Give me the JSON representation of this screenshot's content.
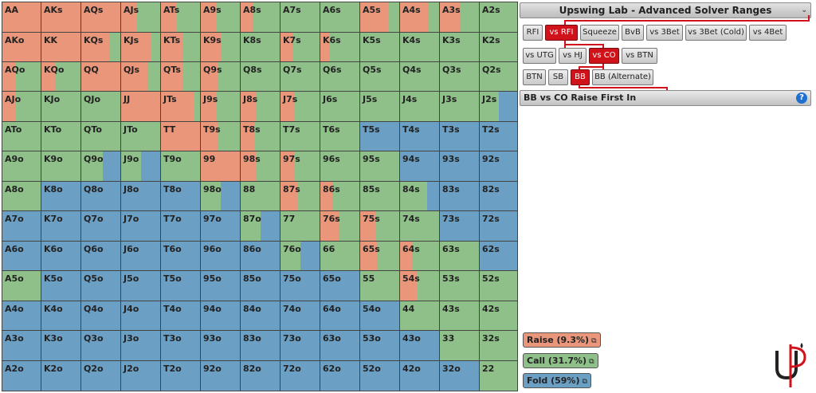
{
  "app": {
    "title": "Upswing Lab - Advanced Solver Ranges"
  },
  "colors": {
    "raise": "#e9967a",
    "call": "#8fc08a",
    "fold": "#6c9fc4",
    "active": "#d0131a"
  },
  "grid": {
    "cells": [
      [
        {
          "h": "AA",
          "r": 1,
          "c": 0
        },
        {
          "h": "AKs",
          "r": 1,
          "c": 0
        },
        {
          "h": "AQs",
          "r": 1,
          "c": 0
        },
        {
          "h": "AJs",
          "r": 0.4,
          "c": 0.6
        },
        {
          "h": "ATs",
          "r": 0.4,
          "c": 0.6
        },
        {
          "h": "A9s",
          "r": 0.4,
          "c": 0.6
        },
        {
          "h": "A8s",
          "r": 0.3,
          "c": 0.7
        },
        {
          "h": "A7s",
          "r": 0,
          "c": 1
        },
        {
          "h": "A6s",
          "r": 0,
          "c": 1
        },
        {
          "h": "A5s",
          "r": 0.72,
          "c": 0.28
        },
        {
          "h": "A4s",
          "r": 0.72,
          "c": 0.28
        },
        {
          "h": "A3s",
          "r": 0.5,
          "c": 0.5
        },
        {
          "h": "A2s",
          "r": 0,
          "c": 1
        }
      ],
      [
        {
          "h": "AKo",
          "r": 1,
          "c": 0
        },
        {
          "h": "KK",
          "r": 1,
          "c": 0
        },
        {
          "h": "KQs",
          "r": 0.72,
          "c": 0.28
        },
        {
          "h": "KJs",
          "r": 0.78,
          "c": 0.22
        },
        {
          "h": "KTs",
          "r": 0.55,
          "c": 0.45
        },
        {
          "h": "K9s",
          "r": 0.5,
          "c": 0.5
        },
        {
          "h": "K8s",
          "r": 0,
          "c": 1
        },
        {
          "h": "K7s",
          "r": 0.3,
          "c": 0.7
        },
        {
          "h": "K6s",
          "r": 0.22,
          "c": 0.78
        },
        {
          "h": "K5s",
          "r": 0,
          "c": 1
        },
        {
          "h": "K4s",
          "r": 0,
          "c": 1
        },
        {
          "h": "K3s",
          "r": 0,
          "c": 1
        },
        {
          "h": "K2s",
          "r": 0,
          "c": 1
        }
      ],
      [
        {
          "h": "AQo",
          "r": 0.35,
          "c": 0.65
        },
        {
          "h": "KQo",
          "r": 0.35,
          "c": 0.65
        },
        {
          "h": "QQ",
          "r": 1,
          "c": 0
        },
        {
          "h": "QJs",
          "r": 0.7,
          "c": 0.3
        },
        {
          "h": "QTs",
          "r": 0.55,
          "c": 0.45
        },
        {
          "h": "Q9s",
          "r": 0.45,
          "c": 0.55
        },
        {
          "h": "Q8s",
          "r": 0,
          "c": 1
        },
        {
          "h": "Q7s",
          "r": 0,
          "c": 1
        },
        {
          "h": "Q6s",
          "r": 0,
          "c": 1
        },
        {
          "h": "Q5s",
          "r": 0,
          "c": 1
        },
        {
          "h": "Q4s",
          "r": 0,
          "c": 1
        },
        {
          "h": "Q3s",
          "r": 0,
          "c": 1
        },
        {
          "h": "Q2s",
          "r": 0,
          "c": 1
        }
      ],
      [
        {
          "h": "AJo",
          "r": 0.35,
          "c": 0.65
        },
        {
          "h": "KJo",
          "r": 0,
          "c": 1
        },
        {
          "h": "QJo",
          "r": 0,
          "c": 1
        },
        {
          "h": "JJ",
          "r": 1,
          "c": 0
        },
        {
          "h": "JTs",
          "r": 0.85,
          "c": 0.15
        },
        {
          "h": "J9s",
          "r": 0.4,
          "c": 0.6
        },
        {
          "h": "J8s",
          "r": 0.4,
          "c": 0.6
        },
        {
          "h": "J7s",
          "r": 0.35,
          "c": 0.65
        },
        {
          "h": "J6s",
          "r": 0,
          "c": 1
        },
        {
          "h": "J5s",
          "r": 0,
          "c": 1
        },
        {
          "h": "J4s",
          "r": 0,
          "c": 1
        },
        {
          "h": "J3s",
          "r": 0,
          "c": 1
        },
        {
          "h": "J2s",
          "r": 0,
          "c": 0.5
        }
      ],
      [
        {
          "h": "ATo",
          "r": 0,
          "c": 1
        },
        {
          "h": "KTo",
          "r": 0,
          "c": 1
        },
        {
          "h": "QTo",
          "r": 0,
          "c": 1
        },
        {
          "h": "JTo",
          "r": 0,
          "c": 1
        },
        {
          "h": "TT",
          "r": 1,
          "c": 0
        },
        {
          "h": "T9s",
          "r": 0.42,
          "c": 0.58
        },
        {
          "h": "T8s",
          "r": 0.35,
          "c": 0.65
        },
        {
          "h": "T7s",
          "r": 0,
          "c": 1
        },
        {
          "h": "T6s",
          "r": 0,
          "c": 1
        },
        {
          "h": "T5s",
          "r": 0,
          "c": 0
        },
        {
          "h": "T4s",
          "r": 0,
          "c": 0
        },
        {
          "h": "T3s",
          "r": 0,
          "c": 0
        },
        {
          "h": "T2s",
          "r": 0,
          "c": 0
        }
      ],
      [
        {
          "h": "A9o",
          "r": 0,
          "c": 1
        },
        {
          "h": "K9o",
          "r": 0,
          "c": 1
        },
        {
          "h": "Q9o",
          "r": 0,
          "c": 0.55
        },
        {
          "h": "J9o",
          "r": 0,
          "c": 0.5
        },
        {
          "h": "T9o",
          "r": 0,
          "c": 1
        },
        {
          "h": "99",
          "r": 1,
          "c": 0
        },
        {
          "h": "98s",
          "r": 0.4,
          "c": 0.6
        },
        {
          "h": "97s",
          "r": 0.35,
          "c": 0.65
        },
        {
          "h": "96s",
          "r": 0,
          "c": 1
        },
        {
          "h": "95s",
          "r": 0,
          "c": 1
        },
        {
          "h": "94s",
          "r": 0,
          "c": 0
        },
        {
          "h": "93s",
          "r": 0,
          "c": 0
        },
        {
          "h": "92s",
          "r": 0,
          "c": 0
        }
      ],
      [
        {
          "h": "A8o",
          "r": 0,
          "c": 1
        },
        {
          "h": "K8o",
          "r": 0,
          "c": 0
        },
        {
          "h": "Q8o",
          "r": 0,
          "c": 0
        },
        {
          "h": "J8o",
          "r": 0,
          "c": 0
        },
        {
          "h": "T8o",
          "r": 0,
          "c": 0
        },
        {
          "h": "98o",
          "r": 0,
          "c": 0.52
        },
        {
          "h": "88",
          "r": 0,
          "c": 1
        },
        {
          "h": "87s",
          "r": 0.45,
          "c": 0.55
        },
        {
          "h": "86s",
          "r": 0.3,
          "c": 0.7
        },
        {
          "h": "85s",
          "r": 0,
          "c": 1
        },
        {
          "h": "84s",
          "r": 0,
          "c": 0.7
        },
        {
          "h": "83s",
          "r": 0,
          "c": 0
        },
        {
          "h": "82s",
          "r": 0,
          "c": 0
        }
      ],
      [
        {
          "h": "A7o",
          "r": 0,
          "c": 0
        },
        {
          "h": "K7o",
          "r": 0,
          "c": 0
        },
        {
          "h": "Q7o",
          "r": 0,
          "c": 0
        },
        {
          "h": "J7o",
          "r": 0,
          "c": 0
        },
        {
          "h": "T7o",
          "r": 0,
          "c": 0
        },
        {
          "h": "97o",
          "r": 0,
          "c": 0
        },
        {
          "h": "87o",
          "r": 0,
          "c": 0.5
        },
        {
          "h": "77",
          "r": 0,
          "c": 1
        },
        {
          "h": "76s",
          "r": 0.48,
          "c": 0.52
        },
        {
          "h": "75s",
          "r": 0.4,
          "c": 0.6
        },
        {
          "h": "74s",
          "r": 0,
          "c": 1
        },
        {
          "h": "73s",
          "r": 0,
          "c": 0
        },
        {
          "h": "72s",
          "r": 0,
          "c": 0
        }
      ],
      [
        {
          "h": "A6o",
          "r": 0,
          "c": 0
        },
        {
          "h": "K6o",
          "r": 0,
          "c": 0
        },
        {
          "h": "Q6o",
          "r": 0,
          "c": 0
        },
        {
          "h": "J6o",
          "r": 0,
          "c": 0
        },
        {
          "h": "T6o",
          "r": 0,
          "c": 0
        },
        {
          "h": "96o",
          "r": 0,
          "c": 0
        },
        {
          "h": "86o",
          "r": 0,
          "c": 0
        },
        {
          "h": "76o",
          "r": 0,
          "c": 0.5
        },
        {
          "h": "66",
          "r": 0,
          "c": 1
        },
        {
          "h": "65s",
          "r": 0.45,
          "c": 0.55
        },
        {
          "h": "64s",
          "r": 0.3,
          "c": 0.7
        },
        {
          "h": "63s",
          "r": 0,
          "c": 1
        },
        {
          "h": "62s",
          "r": 0,
          "c": 0
        }
      ],
      [
        {
          "h": "A5o",
          "r": 0,
          "c": 1
        },
        {
          "h": "K5o",
          "r": 0,
          "c": 0
        },
        {
          "h": "Q5o",
          "r": 0,
          "c": 0
        },
        {
          "h": "J5o",
          "r": 0,
          "c": 0
        },
        {
          "h": "T5o",
          "r": 0,
          "c": 0
        },
        {
          "h": "95o",
          "r": 0,
          "c": 0
        },
        {
          "h": "85o",
          "r": 0,
          "c": 0
        },
        {
          "h": "75o",
          "r": 0,
          "c": 0
        },
        {
          "h": "65o",
          "r": 0,
          "c": 0
        },
        {
          "h": "55",
          "r": 0,
          "c": 1
        },
        {
          "h": "54s",
          "r": 0.45,
          "c": 0.55
        },
        {
          "h": "53s",
          "r": 0,
          "c": 1
        },
        {
          "h": "52s",
          "r": 0,
          "c": 1
        }
      ],
      [
        {
          "h": "A4o",
          "r": 0,
          "c": 0
        },
        {
          "h": "K4o",
          "r": 0,
          "c": 0
        },
        {
          "h": "Q4o",
          "r": 0,
          "c": 0
        },
        {
          "h": "J4o",
          "r": 0,
          "c": 0
        },
        {
          "h": "T4o",
          "r": 0,
          "c": 0
        },
        {
          "h": "94o",
          "r": 0,
          "c": 0
        },
        {
          "h": "84o",
          "r": 0,
          "c": 0
        },
        {
          "h": "74o",
          "r": 0,
          "c": 0
        },
        {
          "h": "64o",
          "r": 0,
          "c": 0
        },
        {
          "h": "54o",
          "r": 0,
          "c": 0
        },
        {
          "h": "44",
          "r": 0,
          "c": 1
        },
        {
          "h": "43s",
          "r": 0,
          "c": 1
        },
        {
          "h": "42s",
          "r": 0,
          "c": 1
        }
      ],
      [
        {
          "h": "A3o",
          "r": 0,
          "c": 0
        },
        {
          "h": "K3o",
          "r": 0,
          "c": 0
        },
        {
          "h": "Q3o",
          "r": 0,
          "c": 0
        },
        {
          "h": "J3o",
          "r": 0,
          "c": 0
        },
        {
          "h": "T3o",
          "r": 0,
          "c": 0
        },
        {
          "h": "93o",
          "r": 0,
          "c": 0
        },
        {
          "h": "83o",
          "r": 0,
          "c": 0
        },
        {
          "h": "73o",
          "r": 0,
          "c": 0
        },
        {
          "h": "63o",
          "r": 0,
          "c": 0
        },
        {
          "h": "53o",
          "r": 0,
          "c": 0
        },
        {
          "h": "43o",
          "r": 0,
          "c": 0
        },
        {
          "h": "33",
          "r": 0,
          "c": 1
        },
        {
          "h": "32s",
          "r": 0,
          "c": 1
        }
      ],
      [
        {
          "h": "A2o",
          "r": 0,
          "c": 0
        },
        {
          "h": "K2o",
          "r": 0,
          "c": 0
        },
        {
          "h": "Q2o",
          "r": 0,
          "c": 0
        },
        {
          "h": "J2o",
          "r": 0,
          "c": 0
        },
        {
          "h": "T2o",
          "r": 0,
          "c": 0
        },
        {
          "h": "92o",
          "r": 0,
          "c": 0
        },
        {
          "h": "82o",
          "r": 0,
          "c": 0
        },
        {
          "h": "72o",
          "r": 0,
          "c": 0
        },
        {
          "h": "62o",
          "r": 0,
          "c": 0
        },
        {
          "h": "52o",
          "r": 0,
          "c": 0
        },
        {
          "h": "42o",
          "r": 0,
          "c": 0
        },
        {
          "h": "32o",
          "r": 0,
          "c": 0
        },
        {
          "h": "22",
          "r": 0,
          "c": 1
        }
      ]
    ]
  },
  "nav": {
    "row1": [
      {
        "label": "RFI",
        "active": false
      },
      {
        "label": "vs RFI",
        "active": true
      },
      {
        "label": "Squeeze",
        "active": false
      },
      {
        "label": "BvB",
        "active": false
      },
      {
        "label": "vs 3Bet",
        "active": false
      },
      {
        "label": "vs 3Bet (Cold)",
        "active": false
      },
      {
        "label": "vs 4Bet",
        "active": false
      }
    ],
    "row2": [
      {
        "label": "vs UTG",
        "active": false
      },
      {
        "label": "vs HJ",
        "active": false
      },
      {
        "label": "vs CO",
        "active": true
      },
      {
        "label": "vs BTN",
        "active": false
      }
    ],
    "row3": [
      {
        "label": "BTN",
        "active": false
      },
      {
        "label": "SB",
        "active": false
      },
      {
        "label": "BB",
        "active": true
      },
      {
        "label": "BB (Alternate)",
        "active": false
      }
    ]
  },
  "section": {
    "title": "BB vs CO Raise First In",
    "help": "?"
  },
  "legend": {
    "raise": "Raise (9.3%)",
    "call": "Call (31.7%)",
    "fold": "Fold (59%)",
    "copy_icon": "⧉"
  },
  "logo": {
    "text": "UP"
  }
}
